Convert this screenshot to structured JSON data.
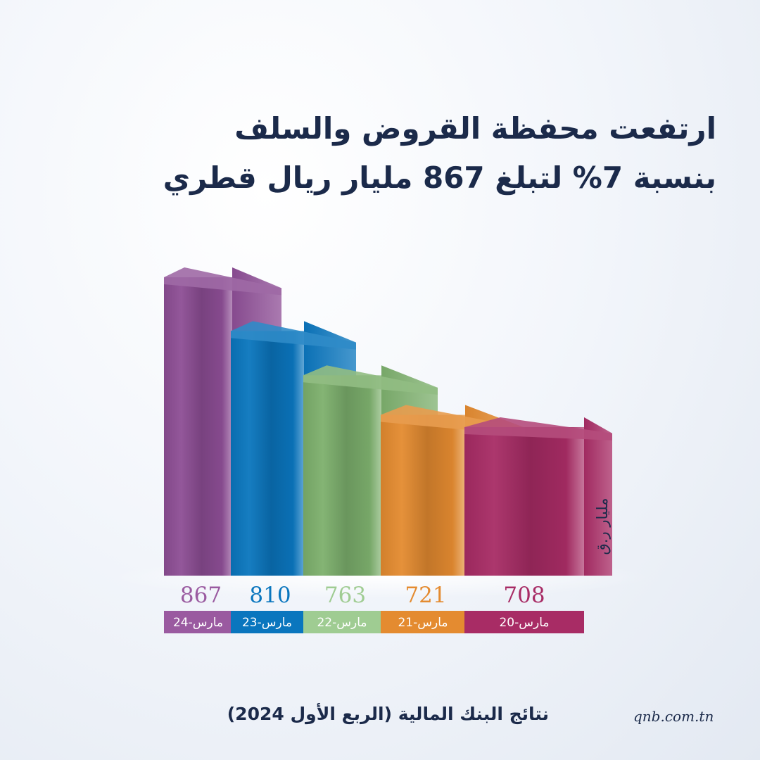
{
  "header": {
    "title_line1": "ارتفعت محفظة القروض والسلف",
    "title_line2": "بنسبة 7% لتبلغ 867 مليار ريال قطري"
  },
  "chart_data": {
    "type": "bar",
    "categories": [
      "مارس-24",
      "مارس-23",
      "مارس-22",
      "مارس-21",
      "مارس-20"
    ],
    "values": [
      867,
      810,
      763,
      721,
      708
    ],
    "colors": [
      "#8d4e95",
      "#0a76be",
      "#7db06d",
      "#e48b30",
      "#a82c65"
    ],
    "label_colors": [
      "#9a5aa0",
      "#0a76be",
      "#9fcc92",
      "#e48b30",
      "#a82c65"
    ],
    "ylabel": "مليار ر.ق"
  },
  "footer": {
    "title": "نتائج البنك المالية (الربع الأول 2024)",
    "website": "qnb.com.tn"
  }
}
